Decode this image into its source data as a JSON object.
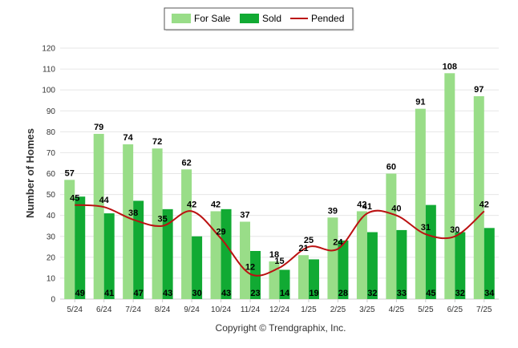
{
  "chart_data": {
    "type": "bar",
    "categories": [
      "5/24",
      "6/24",
      "7/24",
      "8/24",
      "9/24",
      "10/24",
      "11/24",
      "12/24",
      "1/25",
      "2/25",
      "3/25",
      "4/25",
      "5/25",
      "6/25",
      "7/25"
    ],
    "series": [
      {
        "name": "For Sale",
        "type": "bar",
        "color": "#99dd88",
        "values": [
          57,
          79,
          74,
          72,
          62,
          42,
          37,
          18,
          21,
          39,
          42,
          60,
          91,
          108,
          97
        ]
      },
      {
        "name": "Sold",
        "type": "bar",
        "color": "#11aa33",
        "values": [
          49,
          41,
          47,
          43,
          30,
          43,
          23,
          14,
          19,
          28,
          32,
          33,
          45,
          32,
          34
        ]
      },
      {
        "name": "Pended",
        "type": "line",
        "color": "#bb1111",
        "values": [
          45,
          44,
          38,
          35,
          42,
          29,
          12,
          15,
          25,
          24,
          41,
          40,
          31,
          30,
          42
        ]
      }
    ],
    "xlabel": "",
    "ylabel": "Number of Homes",
    "ylim": [
      0,
      120
    ],
    "yticks": [
      0,
      10,
      20,
      30,
      40,
      50,
      60,
      70,
      80,
      90,
      100,
      110,
      120
    ],
    "grid": true,
    "legend_position": "top-center",
    "credit": "Copyright © Trendgraphix, Inc."
  }
}
